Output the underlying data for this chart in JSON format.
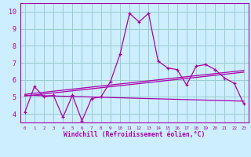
{
  "xlabel": "Windchill (Refroidissement éolien,°C)",
  "bg_color": "#cceeff",
  "line_color": "#aa00aa",
  "grid_color": "#99cccc",
  "xlim": [
    -0.5,
    23.5
  ],
  "ylim": [
    3.5,
    10.5
  ],
  "xticks": [
    0,
    1,
    2,
    3,
    4,
    5,
    6,
    7,
    8,
    9,
    10,
    11,
    12,
    13,
    14,
    15,
    16,
    17,
    18,
    19,
    20,
    21,
    22,
    23
  ],
  "yticks": [
    4,
    5,
    6,
    7,
    8,
    9,
    10
  ],
  "series1_x": [
    0,
    1,
    2,
    3,
    4,
    5,
    6,
    7,
    8,
    9,
    10,
    11,
    12,
    13,
    14,
    15,
    16,
    17,
    18,
    19,
    20,
    21,
    22,
    23
  ],
  "series1_y": [
    4.1,
    5.6,
    5.0,
    5.1,
    3.8,
    5.1,
    3.6,
    4.9,
    5.0,
    5.9,
    7.5,
    9.9,
    9.4,
    9.9,
    7.1,
    6.7,
    6.6,
    5.7,
    6.8,
    6.9,
    6.6,
    6.1,
    5.8,
    4.6
  ],
  "series2_x": [
    0,
    23
  ],
  "series2_y": [
    5.15,
    6.55
  ],
  "series3_x": [
    0,
    23
  ],
  "series3_y": [
    5.05,
    6.45
  ],
  "series4_x": [
    0,
    23
  ],
  "series4_y": [
    5.1,
    4.75
  ]
}
